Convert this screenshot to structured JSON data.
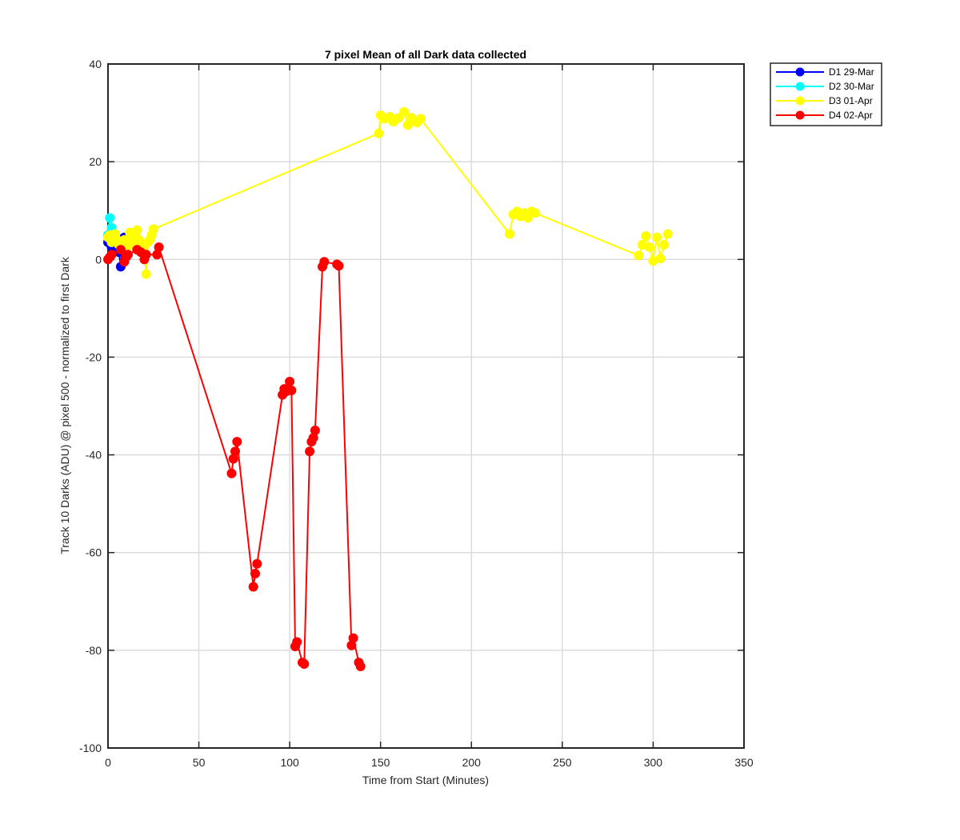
{
  "chart_data": {
    "type": "line",
    "title": "7 pixel Mean of all Dark data collected",
    "xlabel": "Time from Start (Minutes)",
    "ylabel": "Track 10 Darks (ADU) @ pixel 500 - normalized to first Dark",
    "xlim": [
      0,
      350
    ],
    "ylim": [
      -100,
      40
    ],
    "xticks": [
      0,
      50,
      100,
      150,
      200,
      250,
      300,
      350
    ],
    "yticks": [
      -100,
      -80,
      -60,
      -40,
      -20,
      0,
      20,
      40
    ],
    "grid": true,
    "legend_position": "outside-top-right",
    "series": [
      {
        "name": "D1 29-Mar",
        "color": "#0000ff",
        "x": [
          0,
          1,
          2,
          3,
          4,
          5,
          6,
          7,
          8,
          9
        ],
        "y": [
          3.5,
          4.0,
          2.5,
          3.2,
          3.5,
          2.0,
          1.5,
          -1.5,
          3.0,
          4.5
        ]
      },
      {
        "name": "D2 30-Mar",
        "color": "#00ffff",
        "x": [
          0,
          1,
          2,
          3,
          4
        ],
        "y": [
          5.0,
          8.5,
          6.5,
          5.2,
          4.5
        ]
      },
      {
        "name": "D3 01-Apr",
        "color": "#ffff00",
        "x": [
          0,
          1,
          2,
          3,
          4,
          5,
          6,
          7,
          8,
          9,
          10,
          11,
          12,
          13,
          14,
          15,
          16,
          17,
          18,
          19,
          20,
          21,
          22,
          23,
          24,
          25,
          149,
          150,
          152,
          155,
          157,
          160,
          163,
          165,
          167,
          170,
          172,
          221,
          223,
          225,
          227,
          229,
          231,
          233,
          235,
          292,
          294,
          296,
          298,
          300,
          302,
          304,
          306,
          308
        ],
        "y": [
          4.5,
          5.0,
          3.5,
          4.8,
          5.2,
          4.0,
          3.0,
          2.5,
          3.8,
          4.0,
          3.5,
          2.8,
          5.5,
          4.5,
          3.0,
          4.8,
          6.0,
          4.0,
          3.5,
          2.0,
          1.5,
          -3.0,
          3.5,
          4.0,
          5.0,
          6.2,
          25.8,
          29.5,
          28.8,
          29.2,
          28.2,
          29.0,
          30.2,
          27.5,
          29.0,
          28.0,
          28.8,
          5.2,
          9.2,
          9.8,
          8.8,
          9.5,
          8.5,
          9.8,
          9.5,
          0.8,
          3.0,
          4.8,
          2.5,
          -0.3,
          4.5,
          0.2,
          3.0,
          5.2
        ]
      },
      {
        "name": "D4 02-Apr",
        "color": "#ff0000",
        "x": [
          0,
          1,
          2,
          7,
          9,
          10,
          11,
          16,
          18,
          20,
          21,
          27,
          28,
          68,
          69,
          70,
          71,
          80,
          81,
          82,
          96,
          97,
          98,
          100,
          101,
          103,
          104,
          107,
          108,
          111,
          112,
          113,
          114,
          118,
          119,
          126,
          127,
          134,
          135,
          138,
          139
        ],
        "y": [
          0.0,
          0.5,
          1.0,
          2.0,
          -0.5,
          0.5,
          1.0,
          2.0,
          1.5,
          0.0,
          1.0,
          1.0,
          2.5,
          -43.8,
          -40.8,
          -39.3,
          -37.3,
          -67.0,
          -64.3,
          -62.3,
          -27.7,
          -26.5,
          -27.0,
          -25.0,
          -26.8,
          -79.2,
          -78.3,
          -82.5,
          -82.8,
          -39.3,
          -37.3,
          -36.5,
          -35.0,
          -1.5,
          -0.5,
          -1.0,
          -1.3,
          -79.0,
          -77.5,
          -82.5,
          -83.3
        ]
      }
    ]
  }
}
